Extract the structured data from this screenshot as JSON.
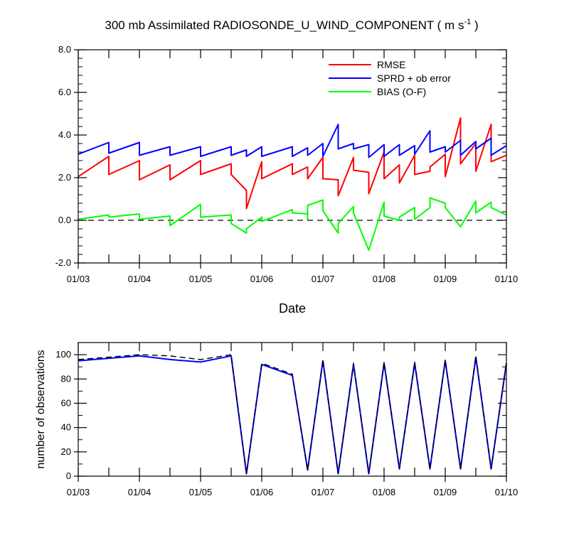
{
  "chart_data": [
    {
      "type": "line",
      "title_main": "300 mb Assimilated RADIOSONDE_U_WIND_COMPONENT ( m s",
      "title_sup": "-1",
      "title_end": " )",
      "xlabel": "Date",
      "ylabel": "",
      "xlim": [
        0,
        7
      ],
      "ylim": [
        -2,
        8
      ],
      "x_ticks": [
        0,
        1,
        2,
        3,
        4,
        5,
        6,
        7
      ],
      "x_tick_labels": [
        "01/03",
        "01/04",
        "01/05",
        "01/06",
        "01/07",
        "01/08",
        "01/09",
        "01/10"
      ],
      "y_ticks": [
        -2,
        0,
        2,
        4,
        6,
        8
      ],
      "y_tick_labels": [
        "-2.0",
        "0.0",
        "2.0",
        "4.0",
        "6.0",
        "8.0"
      ],
      "zero_line": true,
      "legend_position": "top-right",
      "series": [
        {
          "name": "RMSE",
          "color": "#ff0000",
          "points": [
            [
              0,
              2.05
            ],
            [
              0.17,
              2.6
            ],
            [
              0.17,
              2.6
            ],
            [
              0.17,
              2.6
            ],
            [
              0.17,
              2.6
            ],
            [
              0.17,
              2.6
            ],
            [
              0.17,
              2.6
            ],
            [
              0.17,
              2.6
            ],
            [
              0.17,
              2.6
            ],
            [
              0.17,
              2.6
            ],
            [
              0.17,
              2.6
            ],
            [
              0.17,
              2.6
            ],
            [
              0.17,
              2.6
            ],
            [
              0.17,
              2.6
            ],
            [
              0.17,
              2.6
            ],
            [
              0.17,
              2.6
            ],
            [
              0.17,
              2.6
            ],
            [
              0.17,
              2.6
            ],
            [
              0.17,
              2.6
            ],
            [
              0.17,
              2.6
            ],
            [
              0.17,
              2.6
            ],
            [
              0.17,
              2.6
            ],
            [
              0.17,
              2.6
            ],
            [
              0.17,
              2.6
            ],
            [
              0.17,
              2.6
            ],
            [
              0.17,
              2.6
            ],
            [
              0.17,
              2.6
            ],
            [
              0.17,
              2.6
            ],
            [
              0.17,
              2.6
            ],
            [
              0.17,
              2.6
            ],
            [
              0.17,
              2.6
            ],
            [
              0.17,
              2.6
            ],
            [
              0.17,
              2.6
            ],
            [
              0.17,
              2.6
            ],
            [
              0.17,
              2.6
            ],
            [
              0.17,
              2.6
            ],
            [
              0.17,
              2.6
            ],
            [
              0.17,
              2.6
            ],
            [
              0.17,
              2.6
            ],
            [
              0.17,
              2.6
            ],
            [
              0.17,
              2.6
            ],
            [
              0.17,
              2.6
            ],
            [
              0.17,
              2.6
            ],
            [
              0.17,
              2.6
            ],
            [
              0.17,
              2.6
            ],
            [
              0.17,
              2.6
            ],
            [
              0.17,
              2.6
            ],
            [
              0.17,
              2.6
            ],
            [
              0.17,
              2.6
            ],
            [
              0.17,
              2.6
            ],
            [
              0.17,
              2.6
            ],
            [
              0.17,
              2.6
            ],
            [
              0.17,
              2.6
            ],
            [
              0.17,
              2.6
            ],
            [
              0.17,
              2.6
            ],
            [
              0.17,
              2.6
            ],
            [
              0.17,
              2.6
            ],
            [
              0.17,
              2.6
            ],
            [
              0.17,
              2.6
            ],
            [
              0.17,
              2.6
            ],
            [
              0.17,
              2.6
            ],
            [
              0.17,
              2.6
            ],
            [
              0.17,
              2.6
            ],
            [
              0.17,
              2.6
            ],
            [
              0.17,
              2.6
            ],
            [
              0.17,
              2.6
            ],
            [
              0.17,
              2.6
            ],
            [
              0.17,
              2.6
            ],
            [
              0.17,
              2.6
            ],
            [
              0.17,
              2.6
            ],
            [
              0.17,
              2.6
            ],
            [
              0.17,
              2.6
            ],
            [
              0.17,
              2.6
            ],
            [
              0.17,
              2.6
            ],
            [
              0.17,
              2.6
            ],
            [
              0.17,
              2.6
            ],
            [
              0.17,
              2.6
            ],
            [
              0.17,
              2.6
            ],
            [
              0.17,
              2.6
            ],
            [
              0.17,
              2.6
            ],
            [
              0.17,
              2.6
            ],
            [
              0.17,
              2.6
            ],
            [
              0.17,
              2.6
            ],
            [
              0.17,
              2.6
            ],
            [
              0.17,
              2.6
            ],
            [
              0.17,
              2.6
            ],
            [
              0.17,
              2.6
            ],
            [
              0.17,
              2.6
            ],
            [
              0.17,
              2.6
            ],
            [
              0.17,
              2.6
            ],
            [
              0.17,
              2.6
            ],
            [
              0.17,
              2.6
            ],
            [
              0.17,
              2.6
            ],
            [
              0.17,
              2.6
            ],
            [
              0.17,
              2.6
            ],
            [
              0.17,
              2.6
            ],
            [
              0.17,
              2.6
            ],
            [
              0.17,
              2.6
            ],
            [
              0.17,
              2.6
            ],
            [
              0.17,
              2.6
            ],
            [
              0.17,
              2.6
            ],
            [
              0.17,
              2.6
            ]
          ]
        }
      ]
    }
  ]
}
